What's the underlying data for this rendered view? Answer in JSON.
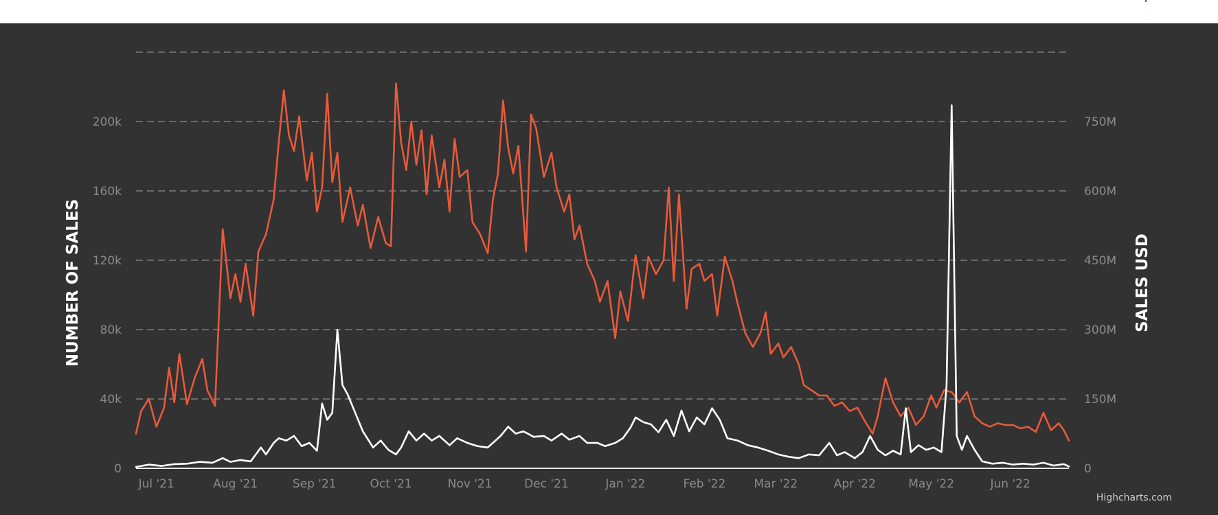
{
  "chart_data": {
    "type": "line",
    "title": "",
    "credits": "Highcharts.com",
    "grid": true,
    "legend": "none",
    "x_ticks": [
      "Jul '21",
      "Aug '21",
      "Sep '21",
      "Oct '21",
      "Nov '21",
      "Dec '21",
      "Jan '22",
      "Feb '22",
      "Mar '22",
      "Apr '22",
      "May '22",
      "Jun '22"
    ],
    "x_range": [
      "2021-06-23",
      "2022-06-24"
    ],
    "yAxes": [
      {
        "id": "left",
        "label": "NUMBER OF SALES",
        "ticks": [
          "0",
          "40k",
          "80k",
          "120k",
          "160k",
          "200k"
        ],
        "min": 0,
        "max": 240000
      },
      {
        "id": "right",
        "label": "SALES USD",
        "ticks": [
          "0",
          "150M",
          "300M",
          "450M",
          "600M",
          "750M"
        ],
        "min": 0,
        "max": 900000000
      }
    ],
    "series": [
      {
        "axis": "left",
        "color": "#e85a3a",
        "points": [
          [
            "2021-06-23",
            20000
          ],
          [
            "2021-06-25",
            33000
          ],
          [
            "2021-06-28",
            40000
          ],
          [
            "2021-07-01",
            24000
          ],
          [
            "2021-07-04",
            35000
          ],
          [
            "2021-07-06",
            58000
          ],
          [
            "2021-07-08",
            38000
          ],
          [
            "2021-07-10",
            66000
          ],
          [
            "2021-07-13",
            37000
          ],
          [
            "2021-07-16",
            52000
          ],
          [
            "2021-07-19",
            63000
          ],
          [
            "2021-07-21",
            45000
          ],
          [
            "2021-07-24",
            36000
          ],
          [
            "2021-07-27",
            138000
          ],
          [
            "2021-07-30",
            98000
          ],
          [
            "2021-08-01",
            112000
          ],
          [
            "2021-08-03",
            96000
          ],
          [
            "2021-08-05",
            118000
          ],
          [
            "2021-08-08",
            88000
          ],
          [
            "2021-08-10",
            125000
          ],
          [
            "2021-08-13",
            135000
          ],
          [
            "2021-08-16",
            155000
          ],
          [
            "2021-08-18",
            188000
          ],
          [
            "2021-08-20",
            218000
          ],
          [
            "2021-08-22",
            192000
          ],
          [
            "2021-08-24",
            183000
          ],
          [
            "2021-08-26",
            203000
          ],
          [
            "2021-08-29",
            166000
          ],
          [
            "2021-08-31",
            182000
          ],
          [
            "2021-09-02",
            148000
          ],
          [
            "2021-09-04",
            162000
          ],
          [
            "2021-09-06",
            216000
          ],
          [
            "2021-09-08",
            165000
          ],
          [
            "2021-09-10",
            182000
          ],
          [
            "2021-09-12",
            142000
          ],
          [
            "2021-09-15",
            162000
          ],
          [
            "2021-09-18",
            140000
          ],
          [
            "2021-09-20",
            152000
          ],
          [
            "2021-09-23",
            127000
          ],
          [
            "2021-09-26",
            145000
          ],
          [
            "2021-09-29",
            130000
          ],
          [
            "2021-10-01",
            128000
          ],
          [
            "2021-10-03",
            222000
          ],
          [
            "2021-10-05",
            188000
          ],
          [
            "2021-10-07",
            172000
          ],
          [
            "2021-10-09",
            200000
          ],
          [
            "2021-10-11",
            175000
          ],
          [
            "2021-10-13",
            195000
          ],
          [
            "2021-10-15",
            158000
          ],
          [
            "2021-10-17",
            192000
          ],
          [
            "2021-10-20",
            162000
          ],
          [
            "2021-10-22",
            178000
          ],
          [
            "2021-10-24",
            148000
          ],
          [
            "2021-10-26",
            190000
          ],
          [
            "2021-10-28",
            168000
          ],
          [
            "2021-10-31",
            172000
          ],
          [
            "2021-11-02",
            142000
          ],
          [
            "2021-11-05",
            135000
          ],
          [
            "2021-11-08",
            124000
          ],
          [
            "2021-11-10",
            155000
          ],
          [
            "2021-11-12",
            170000
          ],
          [
            "2021-11-14",
            212000
          ],
          [
            "2021-11-16",
            185000
          ],
          [
            "2021-11-18",
            170000
          ],
          [
            "2021-11-20",
            186000
          ],
          [
            "2021-11-23",
            125000
          ],
          [
            "2021-11-25",
            204000
          ],
          [
            "2021-11-27",
            196000
          ],
          [
            "2021-11-30",
            168000
          ],
          [
            "2021-12-03",
            182000
          ],
          [
            "2021-12-05",
            162000
          ],
          [
            "2021-12-08",
            148000
          ],
          [
            "2021-12-10",
            158000
          ],
          [
            "2021-12-12",
            132000
          ],
          [
            "2021-12-14",
            140000
          ],
          [
            "2021-12-17",
            118000
          ],
          [
            "2021-12-20",
            108000
          ],
          [
            "2021-12-22",
            96000
          ],
          [
            "2021-12-25",
            108000
          ],
          [
            "2021-12-28",
            75000
          ],
          [
            "2021-12-30",
            102000
          ],
          [
            "2022-01-02",
            85000
          ],
          [
            "2022-01-05",
            123000
          ],
          [
            "2022-01-08",
            98000
          ],
          [
            "2022-01-10",
            122000
          ],
          [
            "2022-01-13",
            112000
          ],
          [
            "2022-01-16",
            120000
          ],
          [
            "2022-01-18",
            162000
          ],
          [
            "2022-01-20",
            108000
          ],
          [
            "2022-01-22",
            158000
          ],
          [
            "2022-01-25",
            92000
          ],
          [
            "2022-01-27",
            115000
          ],
          [
            "2022-01-30",
            118000
          ],
          [
            "2022-02-01",
            108000
          ],
          [
            "2022-02-04",
            112000
          ],
          [
            "2022-02-06",
            88000
          ],
          [
            "2022-02-09",
            122000
          ],
          [
            "2022-02-12",
            108000
          ],
          [
            "2022-02-14",
            95000
          ],
          [
            "2022-02-17",
            78000
          ],
          [
            "2022-02-20",
            70000
          ],
          [
            "2022-02-23",
            78000
          ],
          [
            "2022-02-25",
            90000
          ],
          [
            "2022-02-27",
            66000
          ],
          [
            "2022-03-02",
            72000
          ],
          [
            "2022-03-04",
            64000
          ],
          [
            "2022-03-07",
            70000
          ],
          [
            "2022-03-10",
            60000
          ],
          [
            "2022-03-12",
            48000
          ],
          [
            "2022-03-15",
            45000
          ],
          [
            "2022-03-18",
            42000
          ],
          [
            "2022-03-21",
            42000
          ],
          [
            "2022-03-24",
            36000
          ],
          [
            "2022-03-27",
            38000
          ],
          [
            "2022-03-30",
            33000
          ],
          [
            "2022-04-02",
            35000
          ],
          [
            "2022-04-05",
            27000
          ],
          [
            "2022-04-08",
            20000
          ],
          [
            "2022-04-10",
            30000
          ],
          [
            "2022-04-13",
            52000
          ],
          [
            "2022-04-16",
            38000
          ],
          [
            "2022-04-19",
            30000
          ],
          [
            "2022-04-22",
            35000
          ],
          [
            "2022-04-25",
            25000
          ],
          [
            "2022-04-28",
            30000
          ],
          [
            "2022-05-01",
            42000
          ],
          [
            "2022-05-03",
            35000
          ],
          [
            "2022-05-06",
            45000
          ],
          [
            "2022-05-09",
            44000
          ],
          [
            "2022-05-12",
            38000
          ],
          [
            "2022-05-15",
            44000
          ],
          [
            "2022-05-18",
            30000
          ],
          [
            "2022-05-21",
            26000
          ],
          [
            "2022-05-24",
            24000
          ],
          [
            "2022-05-27",
            26000
          ],
          [
            "2022-05-30",
            25000
          ],
          [
            "2022-06-02",
            25000
          ],
          [
            "2022-06-05",
            23000
          ],
          [
            "2022-06-08",
            24000
          ],
          [
            "2022-06-11",
            21000
          ],
          [
            "2022-06-14",
            32000
          ],
          [
            "2022-06-17",
            22000
          ],
          [
            "2022-06-20",
            26000
          ],
          [
            "2022-06-22",
            22000
          ],
          [
            "2022-06-24",
            16000
          ]
        ]
      },
      {
        "axis": "right",
        "color": "#ffffff",
        "points": [
          [
            "2021-06-23",
            3000000
          ],
          [
            "2021-06-28",
            8000000
          ],
          [
            "2021-07-03",
            5000000
          ],
          [
            "2021-07-08",
            9000000
          ],
          [
            "2021-07-13",
            10000000
          ],
          [
            "2021-07-18",
            14000000
          ],
          [
            "2021-07-23",
            12000000
          ],
          [
            "2021-07-27",
            22000000
          ],
          [
            "2021-07-30",
            14000000
          ],
          [
            "2021-08-03",
            18000000
          ],
          [
            "2021-08-07",
            15000000
          ],
          [
            "2021-08-11",
            45000000
          ],
          [
            "2021-08-13",
            30000000
          ],
          [
            "2021-08-16",
            55000000
          ],
          [
            "2021-08-18",
            65000000
          ],
          [
            "2021-08-21",
            60000000
          ],
          [
            "2021-08-24",
            70000000
          ],
          [
            "2021-08-27",
            48000000
          ],
          [
            "2021-08-30",
            55000000
          ],
          [
            "2021-09-02",
            38000000
          ],
          [
            "2021-09-04",
            140000000
          ],
          [
            "2021-09-06",
            105000000
          ],
          [
            "2021-09-08",
            120000000
          ],
          [
            "2021-09-10",
            300000000
          ],
          [
            "2021-09-12",
            180000000
          ],
          [
            "2021-09-14",
            160000000
          ],
          [
            "2021-09-17",
            120000000
          ],
          [
            "2021-09-20",
            80000000
          ],
          [
            "2021-09-24",
            45000000
          ],
          [
            "2021-09-27",
            60000000
          ],
          [
            "2021-09-30",
            40000000
          ],
          [
            "2021-10-03",
            30000000
          ],
          [
            "2021-10-05",
            45000000
          ],
          [
            "2021-10-08",
            80000000
          ],
          [
            "2021-10-11",
            60000000
          ],
          [
            "2021-10-14",
            75000000
          ],
          [
            "2021-10-17",
            60000000
          ],
          [
            "2021-10-20",
            70000000
          ],
          [
            "2021-10-24",
            50000000
          ],
          [
            "2021-10-27",
            65000000
          ],
          [
            "2021-10-31",
            55000000
          ],
          [
            "2021-11-04",
            48000000
          ],
          [
            "2021-11-08",
            45000000
          ],
          [
            "2021-11-11",
            60000000
          ],
          [
            "2021-11-13",
            70000000
          ],
          [
            "2021-11-16",
            90000000
          ],
          [
            "2021-11-19",
            75000000
          ],
          [
            "2021-11-22",
            80000000
          ],
          [
            "2021-11-26",
            68000000
          ],
          [
            "2021-11-30",
            70000000
          ],
          [
            "2021-12-03",
            60000000
          ],
          [
            "2021-12-07",
            75000000
          ],
          [
            "2021-12-10",
            62000000
          ],
          [
            "2021-12-14",
            70000000
          ],
          [
            "2021-12-17",
            55000000
          ],
          [
            "2021-12-21",
            55000000
          ],
          [
            "2021-12-24",
            48000000
          ],
          [
            "2021-12-28",
            55000000
          ],
          [
            "2021-12-31",
            65000000
          ],
          [
            "2022-01-03",
            88000000
          ],
          [
            "2022-01-05",
            110000000
          ],
          [
            "2022-01-08",
            100000000
          ],
          [
            "2022-01-11",
            95000000
          ],
          [
            "2022-01-14",
            78000000
          ],
          [
            "2022-01-17",
            105000000
          ],
          [
            "2022-01-20",
            70000000
          ],
          [
            "2022-01-23",
            125000000
          ],
          [
            "2022-01-26",
            80000000
          ],
          [
            "2022-01-29",
            110000000
          ],
          [
            "2022-02-01",
            95000000
          ],
          [
            "2022-02-04",
            130000000
          ],
          [
            "2022-02-07",
            105000000
          ],
          [
            "2022-02-10",
            65000000
          ],
          [
            "2022-02-14",
            60000000
          ],
          [
            "2022-02-18",
            50000000
          ],
          [
            "2022-02-22",
            45000000
          ],
          [
            "2022-02-26",
            38000000
          ],
          [
            "2022-03-02",
            30000000
          ],
          [
            "2022-03-06",
            25000000
          ],
          [
            "2022-03-10",
            22000000
          ],
          [
            "2022-03-14",
            30000000
          ],
          [
            "2022-03-18",
            28000000
          ],
          [
            "2022-03-22",
            55000000
          ],
          [
            "2022-03-25",
            28000000
          ],
          [
            "2022-03-28",
            35000000
          ],
          [
            "2022-04-01",
            22000000
          ],
          [
            "2022-04-04",
            35000000
          ],
          [
            "2022-04-07",
            70000000
          ],
          [
            "2022-04-10",
            40000000
          ],
          [
            "2022-04-13",
            28000000
          ],
          [
            "2022-04-16",
            38000000
          ],
          [
            "2022-04-19",
            30000000
          ],
          [
            "2022-04-21",
            130000000
          ],
          [
            "2022-04-23",
            35000000
          ],
          [
            "2022-04-26",
            50000000
          ],
          [
            "2022-04-29",
            40000000
          ],
          [
            "2022-05-02",
            45000000
          ],
          [
            "2022-05-05",
            35000000
          ],
          [
            "2022-05-07",
            180000000
          ],
          [
            "2022-05-09",
            785000000
          ],
          [
            "2022-05-11",
            70000000
          ],
          [
            "2022-05-13",
            40000000
          ],
          [
            "2022-05-15",
            70000000
          ],
          [
            "2022-05-18",
            40000000
          ],
          [
            "2022-05-21",
            15000000
          ],
          [
            "2022-05-25",
            10000000
          ],
          [
            "2022-05-29",
            12000000
          ],
          [
            "2022-06-02",
            8000000
          ],
          [
            "2022-06-06",
            10000000
          ],
          [
            "2022-06-10",
            8000000
          ],
          [
            "2022-06-14",
            12000000
          ],
          [
            "2022-06-18",
            6000000
          ],
          [
            "2022-06-22",
            9000000
          ],
          [
            "2022-06-24",
            4000000
          ]
        ]
      }
    ]
  }
}
